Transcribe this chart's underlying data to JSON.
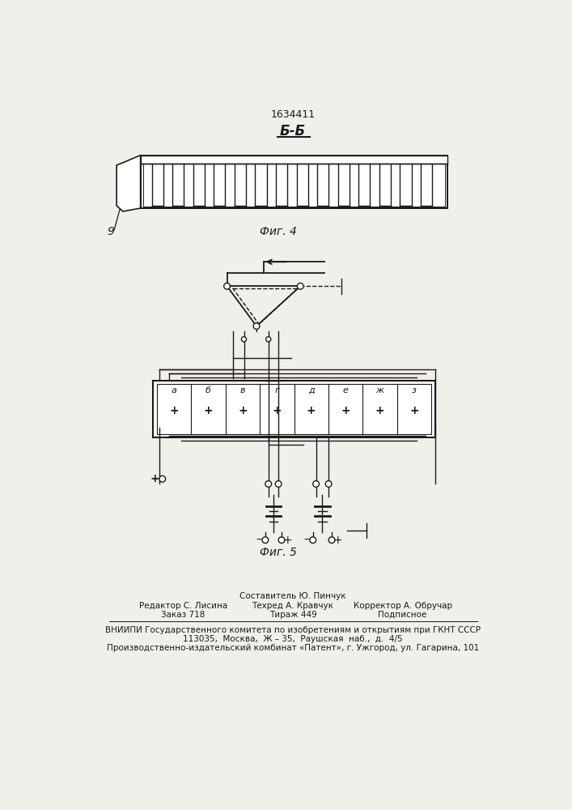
{
  "patent_number": "1634411",
  "section_label": "Б-Б",
  "fig4_label": "Фиг. 4",
  "fig5_label": "Фиг. 5",
  "footer_line1_center": "Составитель Ю. Пинчук",
  "footer_line2_left": "Редактор С. Лисина",
  "footer_line2_center": "Техред А. Кравчук",
  "footer_line2_right": "Корректор А. Обручар",
  "footer_line3_left": "Заказ 718",
  "footer_line3_center": "Тираж 449",
  "footer_line3_right": "Подписное",
  "footer_line4": "ВНИИПИ Государственного комитета по изобретениям и открытиям при ГКНТ СССР",
  "footer_line5": "113035,  Москва,  Ж – 35,  Раушская  наб.,  д.  4/5",
  "footer_line6": "Производственно-издательский комбинат «Патент», г. Ужгород, ул. Гагарина, 101",
  "bg_color": "#f0efea",
  "line_color": "#1a1a1a",
  "label9": "9",
  "section_letters": [
    "а",
    "б",
    "в",
    "г",
    "д",
    "е",
    "ж",
    "з"
  ]
}
